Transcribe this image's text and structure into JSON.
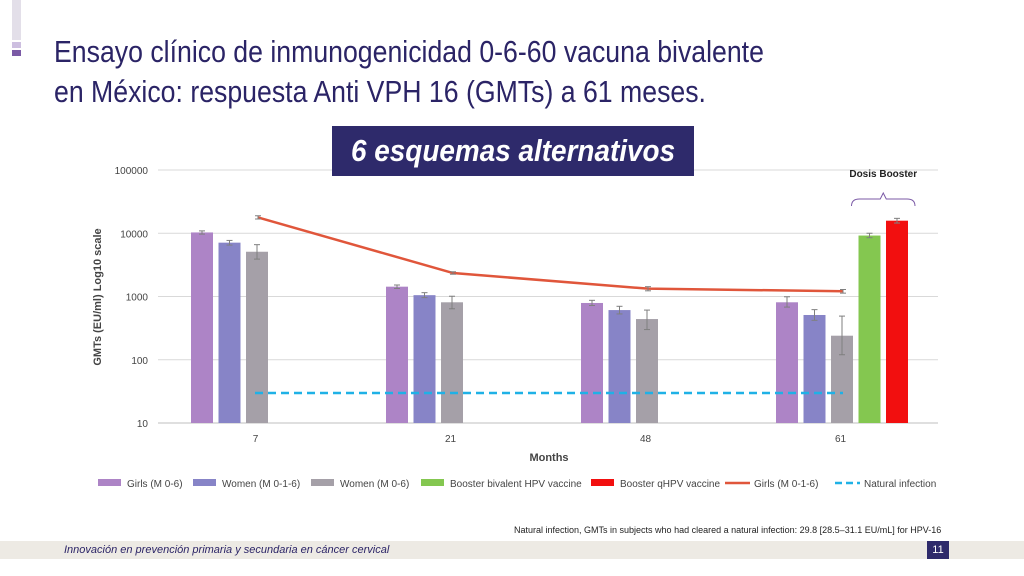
{
  "title": {
    "line1": "Ensayo clínico de inmunogenicidad 0-6-60 vacuna bivalente",
    "line2": "en México: respuesta Anti VPH 16 (GMTs) a 61 meses."
  },
  "banner": "6 esquemas alternativos",
  "footnote": "Natural infection, GMTs in subjects who had cleared a natural infection: 29.8 [28.5–31.1 EU/mL] for HPV-16",
  "footer": {
    "text": "Innovación en prevención primaria y secundaria en cáncer cervical",
    "page": "11"
  },
  "colors": {
    "title": "#2b2466",
    "banner_bg": "#2e2a6b",
    "accent_purple": "#7b5aa6",
    "accent_light": "#cdbfe0"
  },
  "chart_data": {
    "type": "bar",
    "title": "",
    "xlabel": "Months",
    "ylabel": "GMTs (EU/ml) Log10 scale",
    "yscale": "log",
    "ylim": [
      10,
      100000
    ],
    "yticks": [
      10,
      100,
      1000,
      10000,
      100000
    ],
    "ytick_labels": [
      "10",
      "100",
      "1000",
      "10000",
      "100000"
    ],
    "grid": "horizontal",
    "legend_position": "bottom",
    "categories": [
      "7",
      "21",
      "48",
      "61"
    ],
    "series": [
      {
        "name": "Girls (M 0-6)",
        "kind": "bar",
        "color": "#ad84c6",
        "values": [
          10300,
          1430,
          790,
          810
        ],
        "err_low": [
          9700,
          1340,
          720,
          680
        ],
        "err_high": [
          10900,
          1520,
          870,
          990
        ]
      },
      {
        "name": "Women (M 0-1-6)",
        "kind": "bar",
        "color": "#8784c7",
        "values": [
          7100,
          1050,
          610,
          510
        ],
        "err_low": [
          6500,
          960,
          530,
          420
        ],
        "err_high": [
          7700,
          1150,
          700,
          620
        ]
      },
      {
        "name": "Women (M 0-6)",
        "kind": "bar",
        "color": "#a5a0a8",
        "values": [
          5100,
          810,
          440,
          240
        ],
        "err_low": [
          3900,
          640,
          300,
          120
        ],
        "err_high": [
          6600,
          1010,
          610,
          490
        ]
      },
      {
        "name": "Booster bivalent HPV vaccine",
        "kind": "bar",
        "color": "#84c750",
        "values": [
          null,
          null,
          null,
          9200
        ],
        "err_low": [
          null,
          null,
          null,
          8500
        ],
        "err_high": [
          null,
          null,
          null,
          10000
        ]
      },
      {
        "name": "Booster qHPV vaccine",
        "kind": "bar",
        "color": "#f20f0f",
        "values": [
          null,
          null,
          null,
          15800
        ],
        "err_low": [
          null,
          null,
          null,
          14500
        ],
        "err_high": [
          null,
          null,
          null,
          17200
        ]
      },
      {
        "name": "Girls (M 0-1-6)",
        "kind": "line",
        "color": "#e0563b",
        "values": [
          17800,
          2350,
          1330,
          1210
        ],
        "err_low": [
          16800,
          2250,
          1230,
          1130
        ],
        "err_high": [
          18900,
          2460,
          1430,
          1290
        ]
      },
      {
        "name": "Natural infection",
        "kind": "dashed-line",
        "color": "#1fb1e6",
        "values": [
          29.8,
          29.8,
          29.8,
          29.8
        ]
      }
    ],
    "annotation": "Dosis Booster"
  }
}
